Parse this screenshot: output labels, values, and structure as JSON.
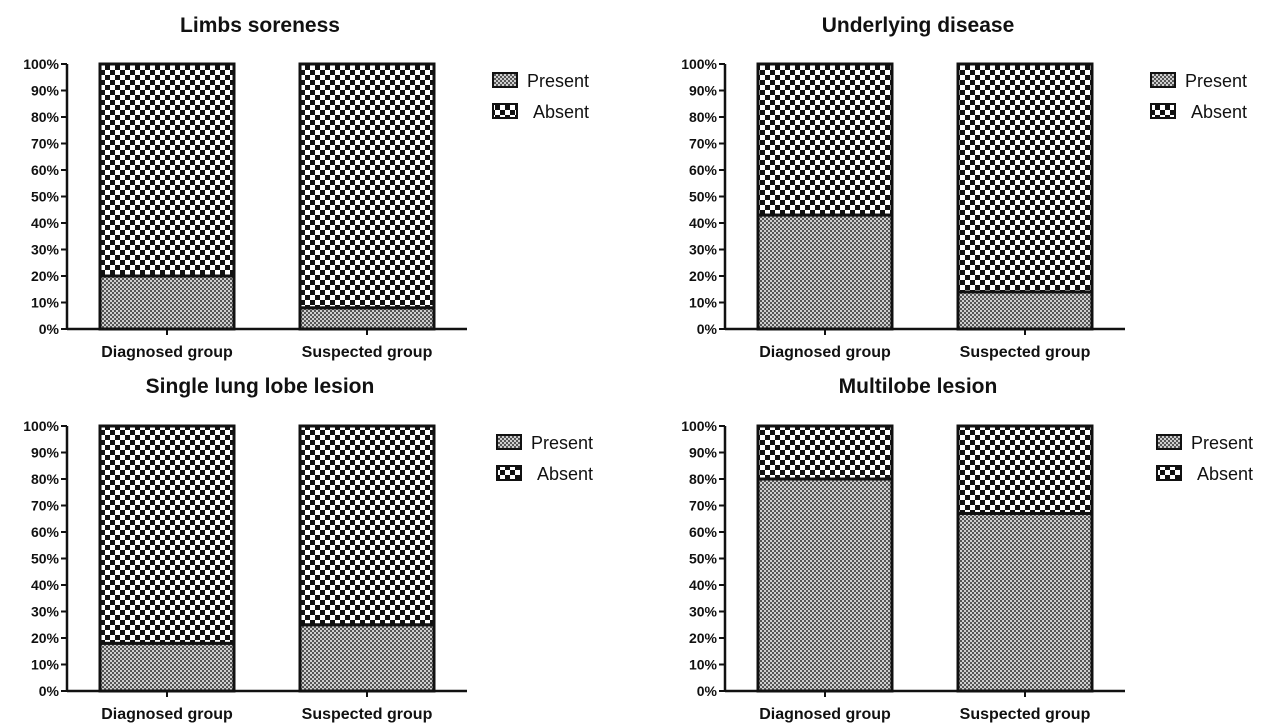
{
  "chart_data": [
    {
      "type": "bar",
      "stacked": true,
      "title": "Limbs soreness",
      "categories": [
        "Diagnosed group",
        "Suspected group"
      ],
      "series": [
        {
          "name": "Present",
          "values": [
            20,
            8
          ]
        },
        {
          "name": "Absent",
          "values": [
            80,
            92
          ]
        }
      ],
      "ylim": [
        0,
        100
      ],
      "yticks": [
        "0%",
        "10%",
        "20%",
        "30%",
        "40%",
        "50%",
        "60%",
        "70%",
        "80%",
        "90%",
        "100%"
      ],
      "legend": "right",
      "grid": false
    },
    {
      "type": "bar",
      "stacked": true,
      "title": "Underlying disease",
      "categories": [
        "Diagnosed group",
        "Suspected group"
      ],
      "series": [
        {
          "name": "Present",
          "values": [
            43,
            14
          ]
        },
        {
          "name": "Absent",
          "values": [
            57,
            86
          ]
        }
      ],
      "ylim": [
        0,
        100
      ],
      "yticks": [
        "0%",
        "10%",
        "20%",
        "30%",
        "40%",
        "50%",
        "60%",
        "70%",
        "80%",
        "90%",
        "100%"
      ],
      "legend": "right",
      "grid": false
    },
    {
      "type": "bar",
      "stacked": true,
      "title": "Single lung lobe lesion",
      "categories": [
        "Diagnosed group",
        "Suspected group"
      ],
      "series": [
        {
          "name": "Present",
          "values": [
            18,
            25
          ]
        },
        {
          "name": "Absent",
          "values": [
            82,
            75
          ]
        }
      ],
      "ylim": [
        0,
        100
      ],
      "yticks": [
        "0%",
        "10%",
        "20%",
        "30%",
        "40%",
        "50%",
        "60%",
        "70%",
        "80%",
        "90%",
        "100%"
      ],
      "legend": "right",
      "grid": false
    },
    {
      "type": "bar",
      "stacked": true,
      "title": "Multilobe lesion",
      "categories": [
        "Diagnosed group",
        "Suspected group"
      ],
      "series": [
        {
          "name": "Present",
          "values": [
            80,
            67
          ]
        },
        {
          "name": "Absent",
          "values": [
            20,
            33
          ]
        }
      ],
      "ylim": [
        0,
        100
      ],
      "yticks": [
        "0%",
        "10%",
        "20%",
        "30%",
        "40%",
        "50%",
        "60%",
        "70%",
        "80%",
        "90%",
        "100%"
      ],
      "legend": "right",
      "grid": false
    }
  ]
}
